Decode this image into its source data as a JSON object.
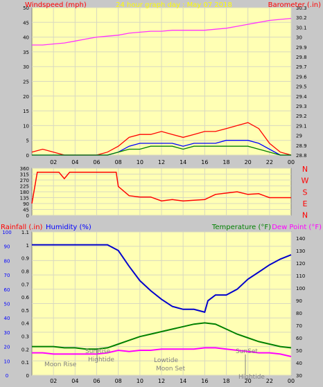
{
  "title": "24 hour graph day : May 07 2018",
  "colors": {
    "background": "#c8c8c8",
    "plot_bg": "#ffffb4",
    "grid": "#d8d8c0",
    "wind": "#ff0000",
    "gust": "#0000ff",
    "wind_green": "#008000",
    "barometer": "#ff33ff",
    "direction": "#ff0000",
    "humidity": "#0000cc",
    "temperature": "#008000",
    "dewpoint": "#ff00ff",
    "rain": "#ff0000",
    "label_red": "#ff0000",
    "label_blue": "#0000ff",
    "label_green": "#008000",
    "label_magenta": "#ff00ff",
    "label_yellow": "#ffff00",
    "axis_text": "#000000"
  },
  "chart_data": [
    {
      "id": "wind-baro",
      "type": "line",
      "title": "24 hour graph day : May 07 2018",
      "ylabel_left": "Windspeed (mph)",
      "ylabel_right": "Barometer (.in)",
      "ylim_left": [
        0,
        50
      ],
      "yticks_left": [
        0,
        5,
        10,
        15,
        20,
        25,
        30,
        35,
        40,
        45,
        50
      ],
      "ylim_right": [
        28.8,
        30.3
      ],
      "yticks_right": [
        "28.8",
        "28.9",
        "29",
        "29.1",
        "29.2",
        "29.3",
        "29.4",
        "29.5",
        "29.6",
        "29.7",
        "29.8",
        "29.9",
        "30",
        "30.1",
        "30.2",
        "30.3"
      ],
      "xticks": [
        "02",
        "04",
        "06",
        "08",
        "10",
        "12",
        "14",
        "16",
        "18",
        "20",
        "22",
        "00"
      ],
      "series": [
        {
          "color_key": "barometer",
          "axis": "right",
          "x": [
            0,
            1,
            2,
            3,
            4,
            5,
            6,
            7,
            8,
            9,
            10,
            11,
            12,
            13,
            14,
            15,
            16,
            17,
            18,
            19,
            20,
            21,
            22,
            23,
            24
          ],
          "values": [
            29.92,
            29.92,
            29.93,
            29.94,
            29.96,
            29.98,
            30.0,
            30.01,
            30.02,
            30.04,
            30.05,
            30.06,
            30.06,
            30.07,
            30.07,
            30.07,
            30.07,
            30.08,
            30.09,
            30.11,
            30.13,
            30.15,
            30.17,
            30.18,
            30.19
          ]
        },
        {
          "color_key": "wind",
          "axis": "left",
          "x": [
            0,
            1,
            2,
            3,
            4,
            5,
            6,
            7,
            8,
            9,
            10,
            11,
            12,
            13,
            14,
            15,
            16,
            17,
            18,
            19,
            20,
            21,
            22,
            23,
            24
          ],
          "values": [
            1,
            2,
            1,
            0,
            0,
            0,
            0,
            1,
            3,
            6,
            7,
            7,
            8,
            7,
            6,
            7,
            8,
            8,
            9,
            10,
            11,
            9,
            4,
            1,
            0
          ]
        },
        {
          "color_key": "gust",
          "axis": "left",
          "x": [
            0,
            1,
            2,
            3,
            4,
            5,
            6,
            7,
            8,
            9,
            10,
            11,
            12,
            13,
            14,
            15,
            16,
            17,
            18,
            19,
            20,
            21,
            22,
            23,
            24
          ],
          "values": [
            0,
            0,
            0,
            0,
            0,
            0,
            0,
            0,
            1,
            3,
            4,
            4,
            4,
            4,
            3,
            4,
            4,
            4,
            5,
            5,
            5,
            4,
            2,
            0,
            0
          ]
        },
        {
          "color_key": "wind_green",
          "axis": "left",
          "x": [
            0,
            1,
            2,
            3,
            4,
            5,
            6,
            7,
            8,
            9,
            10,
            11,
            12,
            13,
            14,
            15,
            16,
            17,
            18,
            19,
            20,
            21,
            22,
            23,
            24
          ],
          "values": [
            0,
            0,
            0,
            0,
            0,
            0,
            0,
            0,
            1,
            2,
            2,
            3,
            3,
            3,
            2,
            3,
            3,
            3,
            3,
            3,
            3,
            2,
            1,
            0,
            0
          ]
        }
      ]
    },
    {
      "id": "wind-dir",
      "type": "line",
      "ylim": [
        0,
        360
      ],
      "yticks": [
        0,
        45,
        90,
        135,
        180,
        225,
        270,
        315,
        360
      ],
      "compass": [
        "N",
        "W",
        "S",
        "E",
        "N"
      ],
      "series": [
        {
          "color_key": "direction",
          "x": [
            0,
            0.5,
            1.5,
            2.5,
            3,
            3.5,
            4,
            5,
            6,
            7,
            7.8,
            8,
            9,
            10,
            11,
            12,
            13,
            14,
            15,
            16,
            17,
            18,
            19,
            20,
            21,
            22,
            23,
            24
          ],
          "values": [
            90,
            330,
            330,
            330,
            280,
            330,
            330,
            330,
            330,
            330,
            330,
            220,
            150,
            140,
            140,
            110,
            120,
            110,
            115,
            120,
            160,
            170,
            180,
            160,
            165,
            135,
            135,
            135
          ]
        }
      ]
    },
    {
      "id": "temp-hum",
      "type": "line",
      "ylabel_left_rain": "Rainfall (.in)",
      "ylabel_left_hum": "Humidity (%)",
      "ylabel_right_temp": "Temperature (°F)",
      "ylabel_right_dew": "Dew Point (°F)",
      "ylim_hum": [
        0,
        100
      ],
      "yticks_hum": [
        0,
        10,
        20,
        30,
        40,
        50,
        60,
        70,
        80,
        90,
        100
      ],
      "ylim_rain": [
        0,
        1.1
      ],
      "yticks_rain": [
        "0",
        "0.1",
        "0.2",
        "0.3",
        "0.4",
        "0.5",
        "0.6",
        "0.7",
        "0.8",
        "0.9",
        "1",
        "1.1"
      ],
      "ylim_temp": [
        30,
        145
      ],
      "yticks_temp": [
        30,
        40,
        50,
        60,
        70,
        80,
        90,
        100,
        110,
        120,
        130,
        140
      ],
      "xticks": [
        "02",
        "04",
        "06",
        "08",
        "10",
        "12",
        "14",
        "16",
        "18",
        "20",
        "22",
        "00"
      ],
      "series": [
        {
          "color_key": "humidity",
          "axis": "hum",
          "x": [
            0,
            1,
            2,
            3,
            4,
            5,
            6,
            7,
            8,
            9,
            10,
            11,
            12,
            13,
            14,
            15,
            16,
            16.3,
            17,
            18,
            19,
            20,
            21,
            22,
            23,
            24
          ],
          "values": [
            91,
            91,
            91,
            91,
            91,
            91,
            91,
            91,
            87,
            76,
            66,
            59,
            53,
            48,
            46,
            46,
            44,
            52,
            56,
            56,
            60,
            67,
            72,
            77,
            81,
            84
          ]
        },
        {
          "color_key": "temperature",
          "axis": "temp",
          "x": [
            0,
            1,
            2,
            3,
            4,
            5,
            6,
            7,
            8,
            9,
            10,
            11,
            12,
            13,
            14,
            15,
            16,
            17,
            18,
            19,
            20,
            21,
            22,
            23,
            24
          ],
          "values": [
            53,
            53,
            53,
            52,
            52,
            51,
            51,
            52,
            55,
            58,
            61,
            63,
            65,
            67,
            69,
            71,
            72,
            71,
            67,
            63,
            60,
            57,
            55,
            53,
            52
          ]
        },
        {
          "color_key": "dewpoint",
          "axis": "temp",
          "x": [
            0,
            1,
            2,
            3,
            4,
            5,
            6,
            7,
            8,
            9,
            10,
            11,
            12,
            13,
            14,
            15,
            16,
            17,
            18,
            19,
            20,
            21,
            22,
            23,
            24
          ],
          "values": [
            48,
            48,
            47,
            47,
            47,
            47,
            47,
            48,
            50,
            49,
            50,
            50,
            51,
            51,
            51,
            51,
            52,
            52,
            51,
            50,
            49,
            48,
            48,
            47,
            45
          ]
        }
      ],
      "annotations": [
        "Moon Rise",
        "SunRise",
        "Hightide",
        "Lowtide",
        "Moon Set",
        "SunSet",
        "Hightide"
      ]
    }
  ]
}
